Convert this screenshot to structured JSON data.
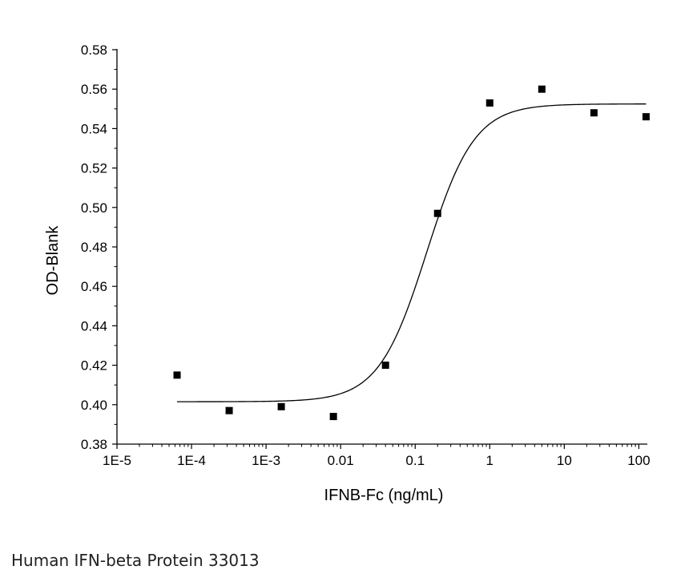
{
  "caption": "Human IFN-beta Protein 33013",
  "chart_data": {
    "type": "scatter",
    "xlabel": "IFNB-Fc (ng/mL)",
    "ylabel": "OD-Blank",
    "x_scale": "log",
    "xlim": [
      1e-05,
      130
    ],
    "ylim": [
      0.38,
      0.58
    ],
    "x_tick_values": [
      1e-05,
      0.0001,
      0.001,
      0.01,
      0.1,
      1,
      10,
      100
    ],
    "x_tick_labels": [
      "1E-5",
      "1E-4",
      "1E-3",
      "0.01",
      "0.1",
      "1",
      "10",
      "100"
    ],
    "y_tick_values": [
      0.38,
      0.4,
      0.42,
      0.44,
      0.46,
      0.48,
      0.5,
      0.52,
      0.54,
      0.56,
      0.58
    ],
    "y_tick_labels": [
      "0.38",
      "0.40",
      "0.42",
      "0.44",
      "0.46",
      "0.48",
      "0.50",
      "0.52",
      "0.54",
      "0.56",
      "0.58"
    ],
    "grid": false,
    "legend": "none",
    "points": [
      {
        "x": 6.4e-05,
        "y": 0.415
      },
      {
        "x": 0.00032,
        "y": 0.397
      },
      {
        "x": 0.0016,
        "y": 0.399
      },
      {
        "x": 0.008,
        "y": 0.394
      },
      {
        "x": 0.04,
        "y": 0.42
      },
      {
        "x": 0.2,
        "y": 0.497
      },
      {
        "x": 1,
        "y": 0.553
      },
      {
        "x": 5,
        "y": 0.56
      },
      {
        "x": 25,
        "y": 0.548
      },
      {
        "x": 125,
        "y": 0.546
      }
    ],
    "fit_curve": {
      "model": "4PL",
      "bottom": 0.4015,
      "top": 0.5525,
      "ec50": 0.142,
      "hill": 1.35,
      "x_range": [
        6.4e-05,
        125
      ]
    },
    "marker_color": "#000000",
    "line_color": "#000000"
  }
}
